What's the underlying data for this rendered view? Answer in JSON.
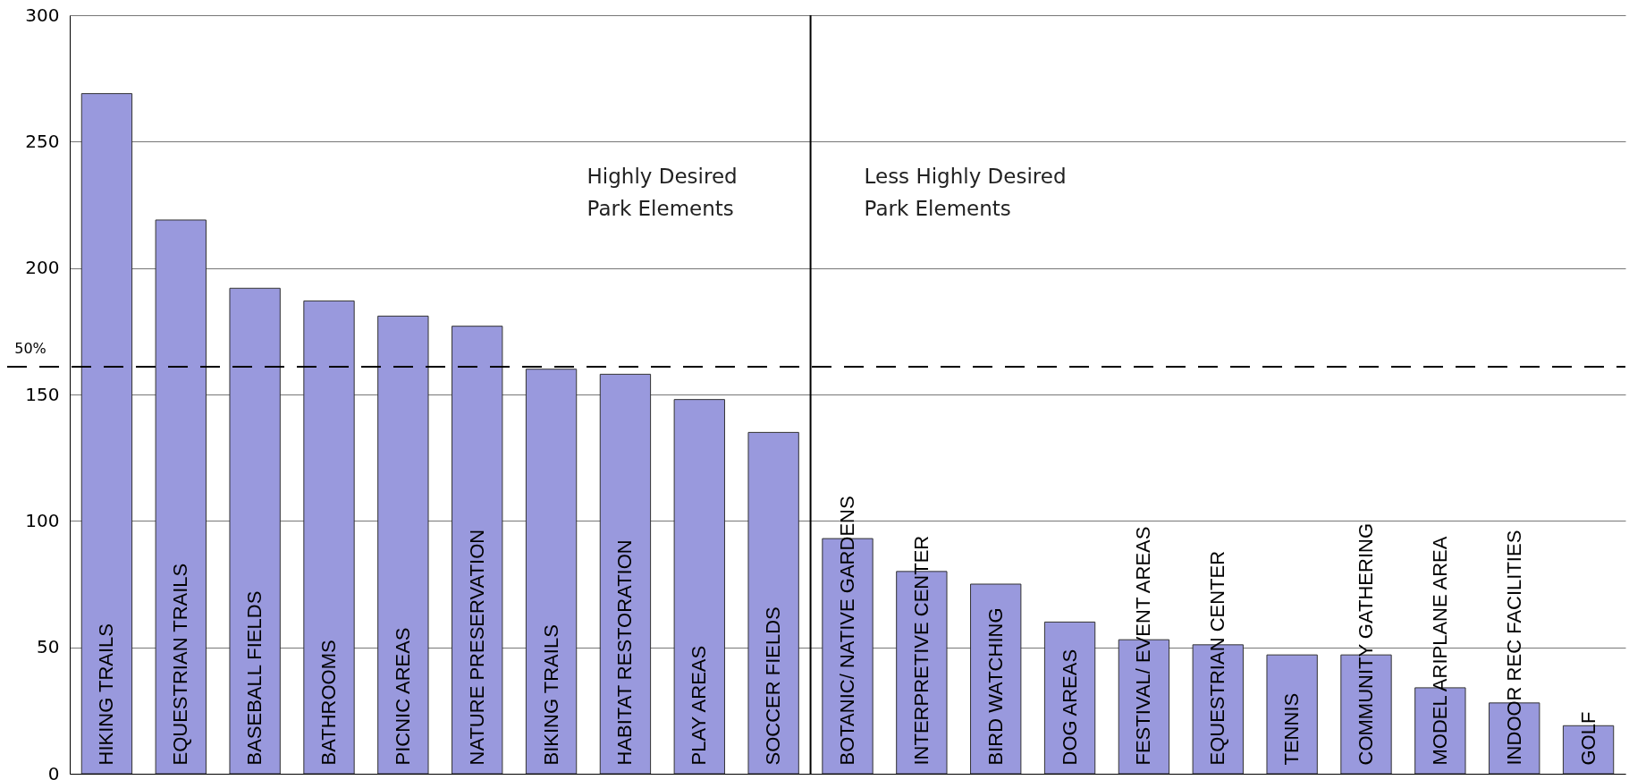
{
  "chart_data": {
    "type": "bar",
    "categories": [
      "HIKING TRAILS",
      "EQUESTRIAN TRAILS",
      "BASEBALL FIELDS",
      "BATHROOMS",
      "PICNIC AREAS",
      "NATURE PRESERVATION",
      "BIKING TRAILS",
      "HABITAT RESTORATION",
      "PLAY AREAS",
      "SOCCER FIELDS",
      "BOTANIC/ NATIVE GARDENS",
      "INTERPRETIVE CENTER",
      "BIRD WATCHING",
      "DOG AREAS",
      "FESTIVAL/ EVENT  AREAS",
      "EQUESTRIAN CENTER",
      "TENNIS",
      "COMMUNITY GATHERING",
      "MODEL ARIPLANE AREA",
      "INDOOR REC FACILITIES",
      "GOLF"
    ],
    "values": [
      269,
      219,
      192,
      187,
      181,
      177,
      160,
      158,
      148,
      135,
      93,
      80,
      75,
      60,
      53,
      51,
      47,
      47,
      34,
      28,
      19
    ],
    "color": "#9999dd",
    "ylim": [
      0,
      300
    ],
    "yticks": [
      0,
      50,
      100,
      150,
      200,
      250,
      300
    ],
    "grid": "y",
    "ref_lines": [
      {
        "axis": "y",
        "value": 161,
        "color": "#000000",
        "line_style": "dashed"
      },
      {
        "axis": "x",
        "value": "BOTANIC/ NATIVE GARDENS",
        "color": "#000000",
        "line_style": "solid"
      }
    ],
    "annotations": [
      "Highly Desired\nPark Elements",
      "Less Highly Desired\nPark Elements",
      {
        "text": "50%",
        "y": 161
      }
    ]
  }
}
